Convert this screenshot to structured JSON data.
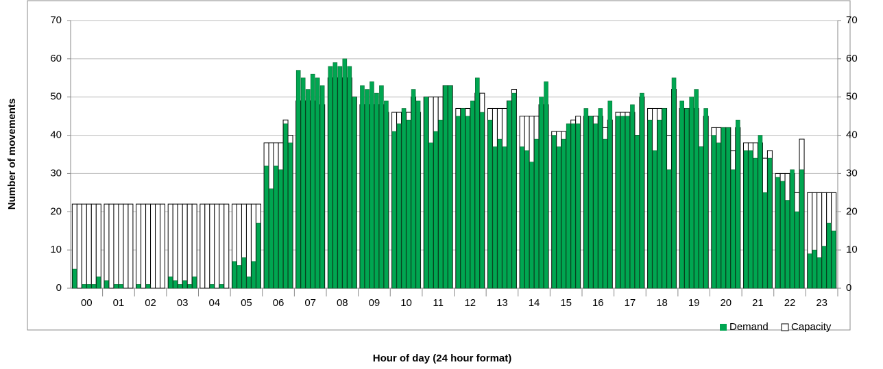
{
  "chart_data": {
    "type": "bar",
    "y_label": "Number of movements",
    "x_label": "Hour of day (24 hour format)",
    "categories": [
      "00",
      "01",
      "02",
      "03",
      "04",
      "05",
      "06",
      "07",
      "08",
      "09",
      "10",
      "11",
      "12",
      "13",
      "14",
      "15",
      "16",
      "17",
      "18",
      "19",
      "20",
      "21",
      "22",
      "23"
    ],
    "series": [
      {
        "name": "Capacity",
        "color": "#ffffff",
        "values": [
          [
            22,
            22,
            22,
            22,
            22,
            22
          ],
          [
            22,
            22,
            22,
            22,
            22,
            22
          ],
          [
            22,
            22,
            22,
            22,
            22,
            22
          ],
          [
            22,
            22,
            22,
            22,
            22,
            22
          ],
          [
            22,
            22,
            22,
            22,
            22,
            22
          ],
          [
            22,
            22,
            22,
            22,
            22,
            22
          ],
          [
            38,
            38,
            38,
            38,
            44,
            40
          ],
          [
            49,
            49,
            49,
            49,
            47,
            48
          ],
          [
            55,
            55,
            55,
            55,
            55,
            50
          ],
          [
            48,
            48,
            48,
            48,
            48,
            46
          ],
          [
            46,
            46,
            46,
            46,
            50,
            46
          ],
          [
            50,
            50,
            50,
            50,
            53,
            53
          ],
          [
            47,
            47,
            47,
            47,
            51,
            51
          ],
          [
            47,
            47,
            47,
            47,
            49,
            52
          ],
          [
            45,
            45,
            45,
            45,
            48,
            48
          ],
          [
            41,
            41,
            41,
            41,
            44,
            45
          ],
          [
            45,
            45,
            45,
            45,
            42,
            44
          ],
          [
            46,
            46,
            46,
            46,
            40,
            50
          ],
          [
            47,
            47,
            47,
            47,
            40,
            52
          ],
          [
            47,
            47,
            47,
            47,
            37,
            45
          ],
          [
            42,
            42,
            42,
            42,
            36,
            42
          ],
          [
            38,
            38,
            38,
            38,
            34,
            36
          ],
          [
            30,
            30,
            30,
            30,
            25,
            39
          ],
          [
            25,
            25,
            25,
            25,
            25,
            25
          ]
        ]
      },
      {
        "name": "Demand",
        "color": "#00a651",
        "values": [
          [
            5,
            0,
            1,
            1,
            1,
            3
          ],
          [
            2,
            0,
            1,
            1,
            0,
            0
          ],
          [
            1,
            0,
            1,
            0,
            0,
            0
          ],
          [
            3,
            2,
            1,
            2,
            1,
            3
          ],
          [
            0,
            0,
            1,
            0,
            1,
            0
          ],
          [
            7,
            6,
            8,
            3,
            7,
            17
          ],
          [
            32,
            26,
            32,
            31,
            43,
            38
          ],
          [
            57,
            55,
            52,
            56,
            55,
            53
          ],
          [
            58,
            59,
            58,
            60,
            58,
            50
          ],
          [
            53,
            52,
            54,
            51,
            53,
            49
          ],
          [
            41,
            43,
            47,
            44,
            52,
            49
          ],
          [
            50,
            38,
            41,
            44,
            53,
            53
          ],
          [
            45,
            47,
            45,
            49,
            55,
            46
          ],
          [
            44,
            37,
            39,
            37,
            49,
            51
          ],
          [
            37,
            36,
            33,
            39,
            50,
            54
          ],
          [
            40,
            37,
            39,
            43,
            43,
            43
          ],
          [
            47,
            45,
            43,
            47,
            39,
            49
          ],
          [
            45,
            45,
            45,
            48,
            40,
            51
          ],
          [
            44,
            36,
            44,
            47,
            31,
            55
          ],
          [
            49,
            47,
            50,
            52,
            37,
            47
          ],
          [
            40,
            38,
            42,
            42,
            31,
            44
          ],
          [
            36,
            36,
            34,
            40,
            25,
            34
          ],
          [
            29,
            28,
            23,
            31,
            20,
            31
          ],
          [
            9,
            10,
            8,
            11,
            17,
            15
          ]
        ]
      }
    ],
    "ylim": [
      0,
      70
    ],
    "yticks": [
      0,
      10,
      20,
      30,
      40,
      50,
      60,
      70
    ],
    "y2lim": [
      0,
      70
    ],
    "y2ticks": [
      0,
      10,
      20,
      30,
      40,
      50,
      60,
      70
    ],
    "grid": true,
    "legend": "bottom-right"
  }
}
